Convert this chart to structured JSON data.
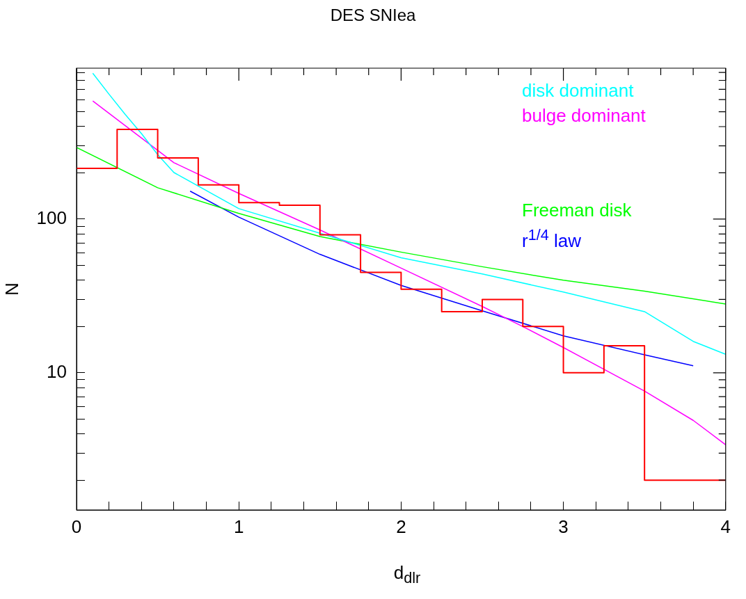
{
  "chart_data": {
    "type": "line",
    "title": "DES SNIea",
    "xlabel": "d$_{dlr}$",
    "ylabel": "N",
    "series": [
      {
        "type": "step",
        "color": "#ff0000",
        "x": [
          0,
          0.25,
          0.5,
          0.75,
          1,
          1.25,
          1.5,
          1.75,
          2,
          2.25,
          2.5,
          2.75,
          3,
          3.25,
          3.5,
          3.75,
          4
        ],
        "values": [
          214,
          384,
          250,
          167,
          128,
          123,
          79,
          45,
          35,
          25,
          30,
          20,
          10,
          15,
          2,
          2,
          2
        ]
      },
      {
        "name": "disk dominant",
        "type": "line",
        "color": "#00ffff",
        "x": [
          0.1,
          0.2,
          0.3,
          0.4,
          0.5,
          0.6,
          1,
          1.5,
          2,
          2.5,
          3,
          3.5,
          3.8,
          4
        ],
        "values": [
          890,
          650,
          480,
          360,
          263,
          201,
          117,
          81,
          56,
          44,
          33.5,
          25,
          16,
          13.2
        ]
      },
      {
        "name": "bulge dominant",
        "type": "line",
        "color": "#ff00ff",
        "x": [
          0.1,
          0.6,
          1,
          1.5,
          2,
          2.5,
          2.75,
          3,
          3.5,
          3.8,
          4
        ],
        "values": [
          587,
          233,
          147,
          85,
          48,
          27,
          20,
          14.6,
          7.6,
          4.9,
          3.4
        ]
      },
      {
        "name": "Freeman disk",
        "type": "line",
        "color": "#00ff00",
        "x": [
          0,
          0.5,
          1,
          1.5,
          2,
          2.5,
          3,
          3.5,
          4
        ],
        "values": [
          293,
          160,
          109,
          77,
          61,
          49,
          40,
          34,
          28
        ]
      },
      {
        "name": "r$^{1/4}$ law",
        "type": "line",
        "color": "#0000ff",
        "x": [
          0.7,
          1,
          1.5,
          2,
          2.5,
          3,
          3.5,
          3.8
        ],
        "values": [
          152,
          103,
          59,
          37,
          25.3,
          17.4,
          13.1,
          11.1
        ]
      }
    ],
    "xlim": [
      0,
      4
    ],
    "xticks": [
      0,
      {
        "value": 0.2,
        "label": null
      },
      {
        "value": 0.4,
        "label": null
      },
      {
        "value": 0.6,
        "label": null
      },
      {
        "value": 0.8,
        "label": null
      },
      1,
      {
        "value": 1.2,
        "label": null
      },
      {
        "value": 1.4,
        "label": null
      },
      {
        "value": 1.6,
        "label": null
      },
      {
        "value": 1.8,
        "label": null
      },
      2,
      {
        "value": 2.2,
        "label": null
      },
      {
        "value": 2.4,
        "label": null
      },
      {
        "value": 2.6,
        "label": null
      },
      {
        "value": 2.8,
        "label": null
      },
      3,
      {
        "value": 3.2,
        "label": null
      },
      {
        "value": 3.4,
        "label": null
      },
      {
        "value": 3.6,
        "label": null
      },
      {
        "value": 3.8,
        "label": null
      },
      4
    ],
    "ylim": [
      1.28,
      960
    ],
    "log": "y",
    "yticks": [
      {
        "value": 2,
        "label": null
      },
      {
        "value": 3,
        "label": null
      },
      {
        "value": 4,
        "label": null
      },
      {
        "value": 5,
        "label": null
      },
      {
        "value": 6,
        "label": null
      },
      {
        "value": 7,
        "label": null
      },
      {
        "value": 8,
        "label": null
      },
      {
        "value": 9,
        "label": null
      },
      10,
      {
        "value": 20,
        "label": null
      },
      {
        "value": 30,
        "label": null
      },
      {
        "value": 40,
        "label": null
      },
      {
        "value": 50,
        "label": null
      },
      {
        "value": 60,
        "label": null
      },
      {
        "value": 70,
        "label": null
      },
      {
        "value": 80,
        "label": null
      },
      {
        "value": 90,
        "label": null
      },
      100,
      {
        "value": 200,
        "label": null
      },
      {
        "value": 300,
        "label": null
      },
      {
        "value": 400,
        "label": null
      },
      {
        "value": 500,
        "label": null
      },
      {
        "value": 600,
        "label": null
      },
      {
        "value": 700,
        "label": null
      },
      {
        "value": 800,
        "label": null
      },
      {
        "value": 900,
        "label": null
      }
    ],
    "legend": "top right"
  }
}
